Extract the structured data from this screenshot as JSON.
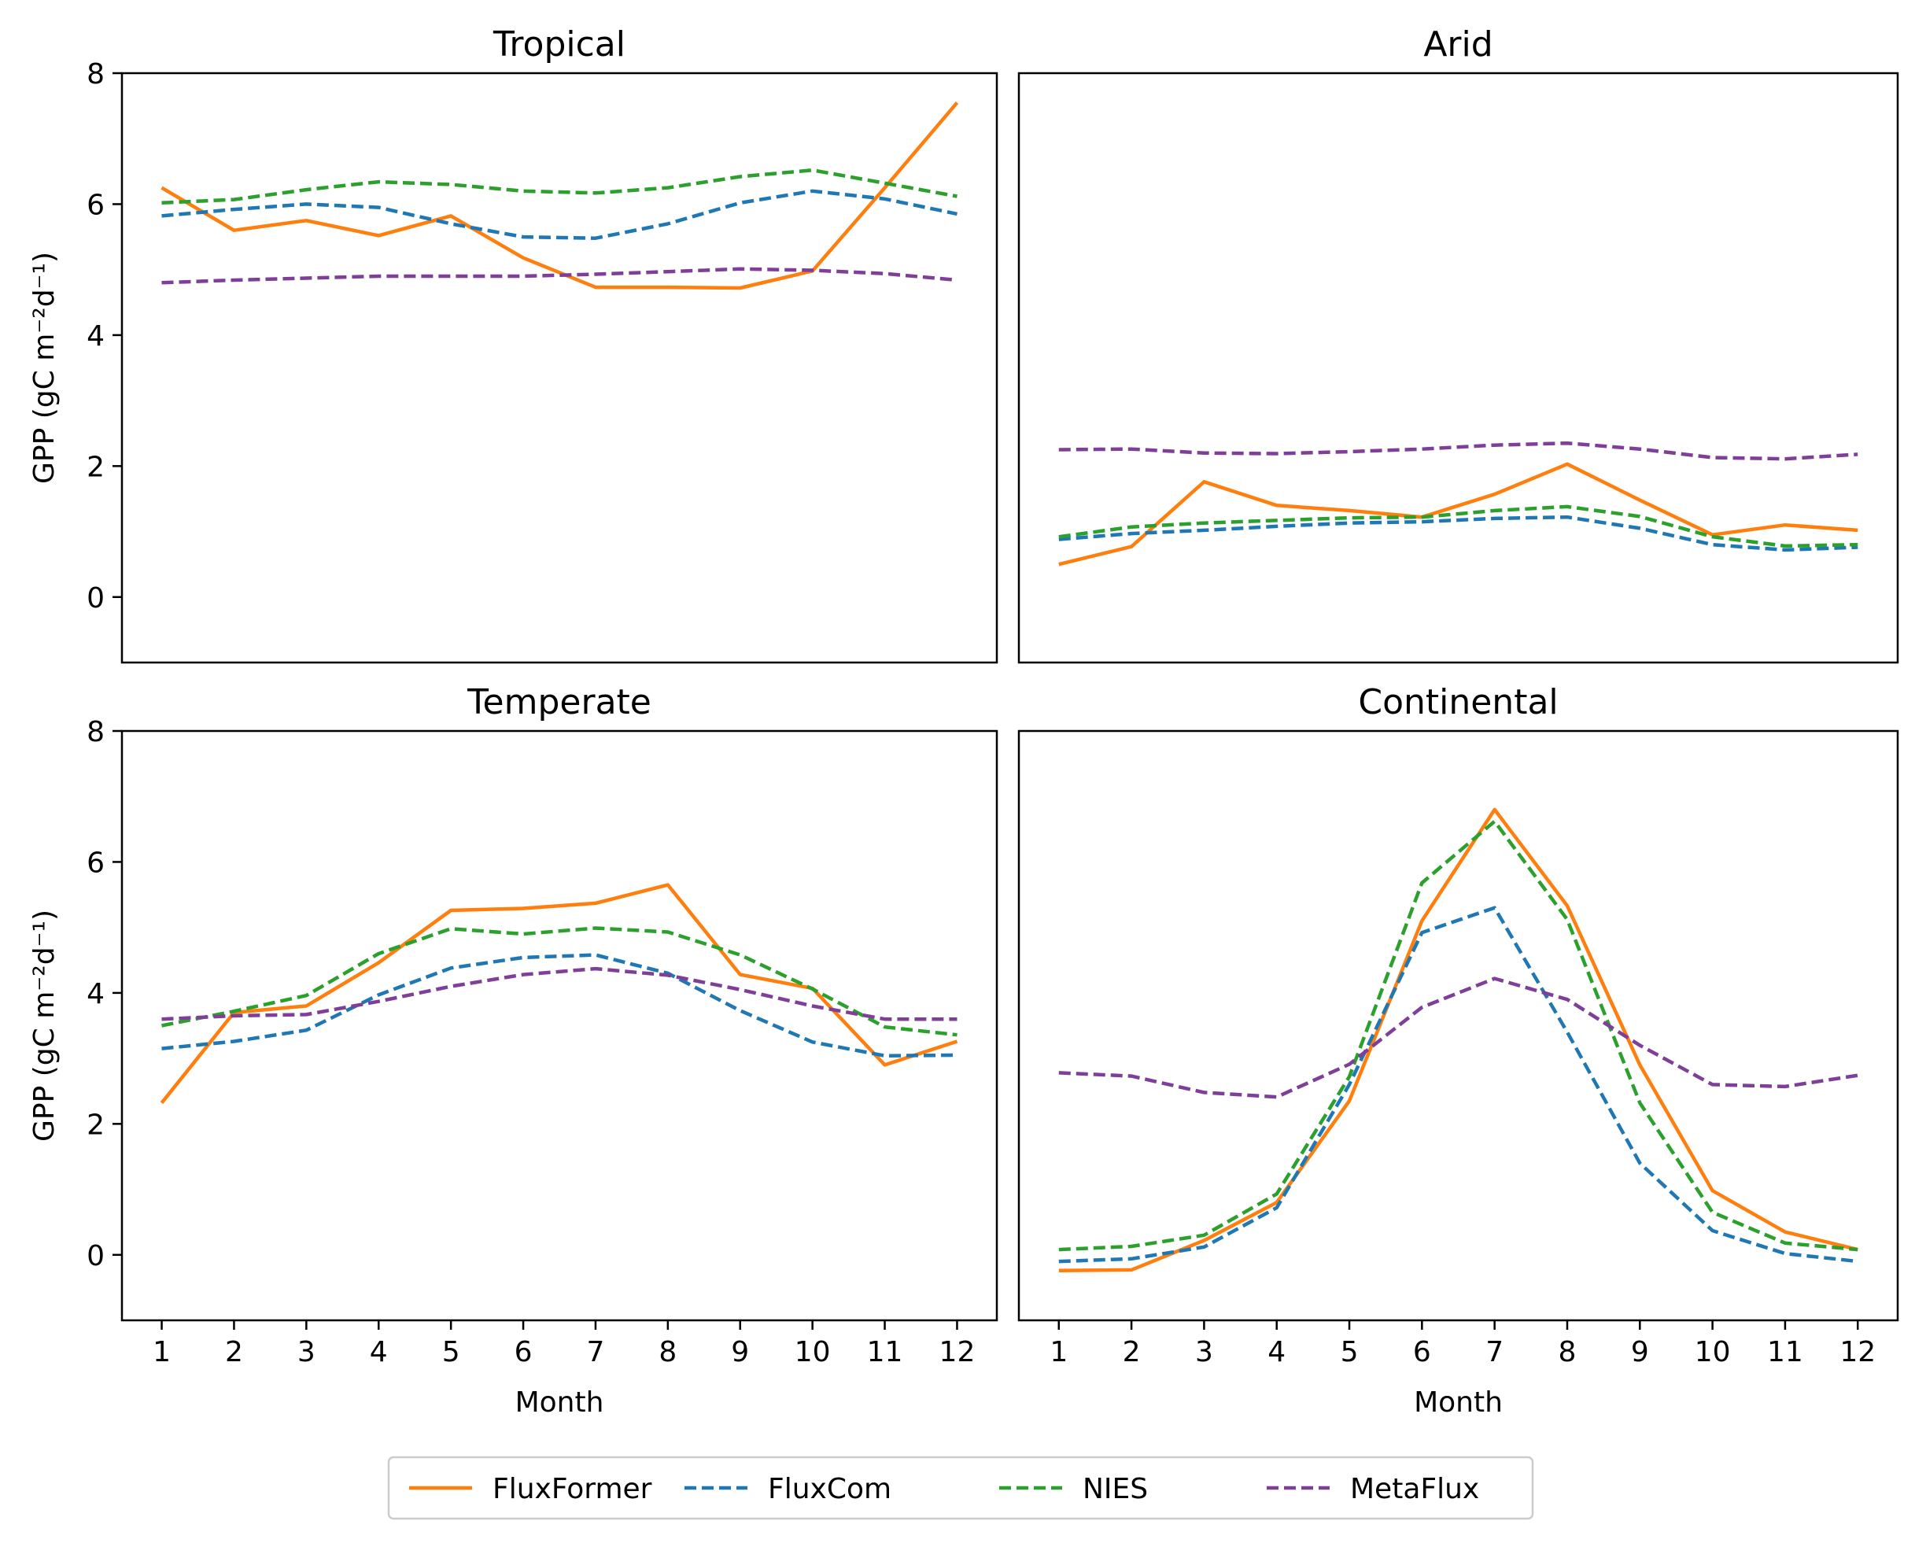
{
  "legend": {
    "placement": "bottom-center",
    "items": [
      {
        "name": "FluxFormer",
        "color": "#ff7f0e",
        "dash": "solid"
      },
      {
        "name": "FluxCom",
        "color": "#1f77b4",
        "dash": "dashed"
      },
      {
        "name": "NIES",
        "color": "#2ca02c",
        "dash": "dashed"
      },
      {
        "name": "MetaFlux",
        "color": "#7f3f98",
        "dash": "dashed"
      }
    ]
  },
  "chart_data": [
    {
      "type": "line",
      "title": "Tropical",
      "xlabel": "",
      "ylabel": "GPP (gC m⁻²d⁻¹)",
      "x": [
        1,
        2,
        3,
        4,
        5,
        6,
        7,
        8,
        9,
        10,
        11,
        12
      ],
      "xlim": [
        0.45,
        12.55
      ],
      "ylim": [
        -1,
        8
      ],
      "yticks": [
        0,
        2,
        4,
        6,
        8
      ],
      "show_xticks": false,
      "show_yticks": true,
      "grid": false,
      "series": [
        {
          "name": "FluxFormer",
          "values": [
            6.25,
            5.6,
            5.75,
            5.52,
            5.82,
            5.18,
            4.73,
            4.73,
            4.72,
            4.98,
            6.25,
            7.55
          ]
        },
        {
          "name": "FluxCom",
          "values": [
            5.82,
            5.92,
            6.0,
            5.95,
            5.7,
            5.5,
            5.48,
            5.7,
            6.02,
            6.2,
            6.08,
            5.85
          ]
        },
        {
          "name": "NIES",
          "values": [
            6.02,
            6.07,
            6.22,
            6.34,
            6.3,
            6.2,
            6.17,
            6.25,
            6.42,
            6.52,
            6.32,
            6.12
          ]
        },
        {
          "name": "MetaFlux",
          "values": [
            4.8,
            4.84,
            4.87,
            4.9,
            4.9,
            4.9,
            4.93,
            4.97,
            5.01,
            4.99,
            4.94,
            4.84
          ]
        }
      ]
    },
    {
      "type": "line",
      "title": "Arid",
      "xlabel": "",
      "ylabel": "",
      "x": [
        1,
        2,
        3,
        4,
        5,
        6,
        7,
        8,
        9,
        10,
        11,
        12
      ],
      "xlim": [
        0.45,
        12.55
      ],
      "ylim": [
        -1,
        8
      ],
      "yticks": [
        0,
        2,
        4,
        6,
        8
      ],
      "show_xticks": false,
      "show_yticks": false,
      "grid": false,
      "series": [
        {
          "name": "FluxFormer",
          "values": [
            0.5,
            0.77,
            1.76,
            1.4,
            1.32,
            1.22,
            1.57,
            2.03,
            1.48,
            0.95,
            1.1,
            1.02
          ]
        },
        {
          "name": "FluxCom",
          "values": [
            0.88,
            0.97,
            1.02,
            1.08,
            1.13,
            1.15,
            1.2,
            1.22,
            1.05,
            0.8,
            0.72,
            0.76
          ]
        },
        {
          "name": "NIES",
          "values": [
            0.92,
            1.07,
            1.13,
            1.17,
            1.21,
            1.22,
            1.32,
            1.38,
            1.23,
            0.92,
            0.78,
            0.8
          ]
        },
        {
          "name": "MetaFlux",
          "values": [
            2.25,
            2.26,
            2.2,
            2.19,
            2.22,
            2.26,
            2.32,
            2.35,
            2.26,
            2.13,
            2.11,
            2.18
          ]
        }
      ]
    },
    {
      "type": "line",
      "title": "Temperate",
      "xlabel": "Month",
      "ylabel": "GPP (gC m⁻²d⁻¹)",
      "x": [
        1,
        2,
        3,
        4,
        5,
        6,
        7,
        8,
        9,
        10,
        11,
        12
      ],
      "xlim": [
        0.45,
        12.55
      ],
      "ylim": [
        -1,
        8
      ],
      "yticks": [
        0,
        2,
        4,
        6,
        8
      ],
      "show_xticks": true,
      "show_yticks": true,
      "grid": false,
      "series": [
        {
          "name": "FluxFormer",
          "values": [
            2.32,
            3.7,
            3.8,
            4.46,
            5.26,
            5.29,
            5.37,
            5.65,
            4.28,
            4.07,
            2.9,
            3.26
          ]
        },
        {
          "name": "FluxCom",
          "values": [
            3.15,
            3.26,
            3.43,
            3.97,
            4.38,
            4.54,
            4.58,
            4.3,
            3.73,
            3.25,
            3.04,
            3.05
          ]
        },
        {
          "name": "NIES",
          "values": [
            3.5,
            3.72,
            3.96,
            4.6,
            4.98,
            4.9,
            4.99,
            4.93,
            4.58,
            4.06,
            3.48,
            3.36
          ]
        },
        {
          "name": "MetaFlux",
          "values": [
            3.6,
            3.65,
            3.67,
            3.87,
            4.1,
            4.28,
            4.37,
            4.27,
            4.05,
            3.8,
            3.6,
            3.6
          ]
        }
      ]
    },
    {
      "type": "line",
      "title": "Continental",
      "xlabel": "Month",
      "ylabel": "",
      "x": [
        1,
        2,
        3,
        4,
        5,
        6,
        7,
        8,
        9,
        10,
        11,
        12
      ],
      "xlim": [
        0.45,
        12.55
      ],
      "ylim": [
        -1,
        8
      ],
      "yticks": [
        0,
        2,
        4,
        6,
        8
      ],
      "show_xticks": true,
      "show_yticks": false,
      "grid": false,
      "series": [
        {
          "name": "FluxFormer",
          "values": [
            -0.24,
            -0.23,
            0.22,
            0.8,
            2.35,
            5.1,
            6.8,
            5.33,
            2.9,
            0.98,
            0.35,
            0.08
          ]
        },
        {
          "name": "FluxCom",
          "values": [
            -0.1,
            -0.06,
            0.12,
            0.72,
            2.6,
            4.92,
            5.3,
            3.4,
            1.4,
            0.37,
            0.02,
            -0.1
          ]
        },
        {
          "name": "NIES",
          "values": [
            0.08,
            0.13,
            0.3,
            0.93,
            2.72,
            5.68,
            6.62,
            5.12,
            2.32,
            0.65,
            0.18,
            0.08
          ]
        },
        {
          "name": "MetaFlux",
          "values": [
            2.78,
            2.73,
            2.48,
            2.41,
            2.91,
            3.78,
            4.22,
            3.9,
            3.2,
            2.6,
            2.57,
            2.74
          ]
        }
      ]
    }
  ]
}
